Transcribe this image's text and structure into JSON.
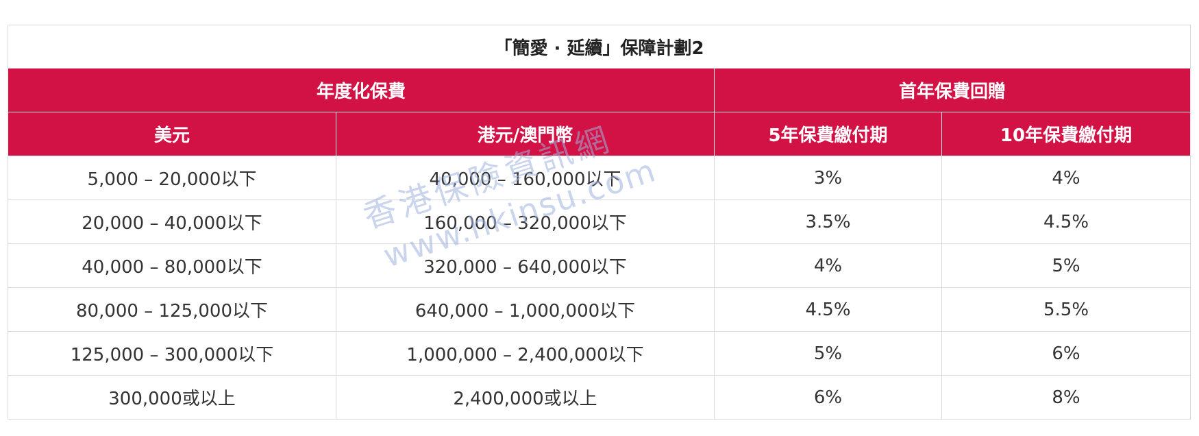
{
  "table": {
    "title": "「簡愛 · 延續」保障計劃2",
    "group_headers": {
      "annualized_premium": "年度化保費",
      "first_year_rebate": "首年保費回贈"
    },
    "column_headers": {
      "usd": "美元",
      "hkd_mop": "港元/澳門幣",
      "pay_5yr": "5年保費繳付期",
      "pay_10yr": "10年保費繳付期"
    },
    "rows": [
      {
        "usd": "5,000 – 20,000以下",
        "hkd": "40,000 – 160,000以下",
        "r5": "3%",
        "r10": "4%"
      },
      {
        "usd": "20,000 – 40,000以下",
        "hkd": "160,000 – 320,000以下",
        "r5": "3.5%",
        "r10": "4.5%"
      },
      {
        "usd": "40,000 – 80,000以下",
        "hkd": "320,000 – 640,000以下",
        "r5": "4%",
        "r10": "5%"
      },
      {
        "usd": "80,000 – 125,000以下",
        "hkd": "640,000 – 1,000,000以下",
        "r5": "4.5%",
        "r10": "5.5%"
      },
      {
        "usd": "125,000 – 300,000以下",
        "hkd": "1,000,000 – 2,400,000以下",
        "r5": "5%",
        "r10": "6%"
      },
      {
        "usd": "300,000或以上",
        "hkd": "2,400,000或以上",
        "r5": "6%",
        "r10": "8%"
      }
    ]
  },
  "watermark": {
    "line1": "香港保險資訊網",
    "line2": "www.hkinsu.com"
  },
  "colors": {
    "header_bg": "#d21144",
    "header_text": "#ffffff",
    "border": "#d9d9d9",
    "body_text": "#333333",
    "watermark": "#9fb3df"
  }
}
